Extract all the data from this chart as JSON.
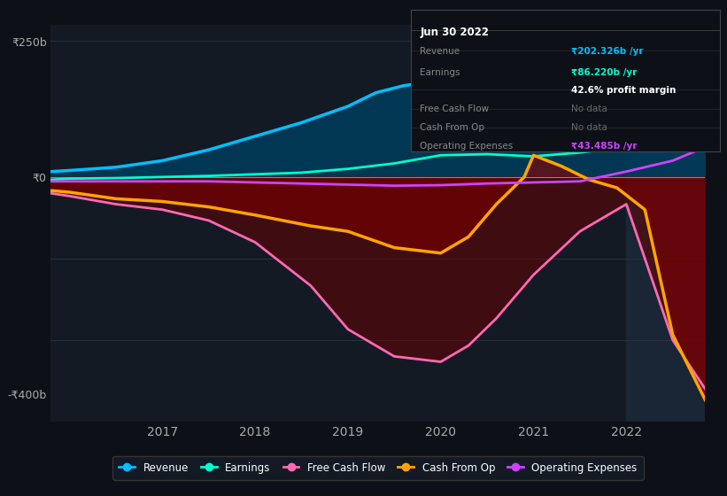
{
  "bg_color": "#0d1117",
  "plot_bg_color": "#131a24",
  "y_label_250": "₹250b",
  "y_label_0": "₹0",
  "y_label_neg400": "-₹400b",
  "ylim": [
    -450,
    280
  ],
  "xlim_start": 2015.8,
  "xlim_end": 2022.85,
  "x_ticks": [
    2017,
    2018,
    2019,
    2020,
    2021,
    2022
  ],
  "highlight_x_start": 2022.0,
  "highlight_x_end": 2022.85,
  "revenue": {
    "x": [
      2015.8,
      2016,
      2016.5,
      2017,
      2017.5,
      2018,
      2018.5,
      2019,
      2019.3,
      2019.6,
      2019.9,
      2020.2,
      2020.5,
      2020.8,
      2021.0,
      2021.3,
      2021.6,
      2021.9,
      2022.2,
      2022.5,
      2022.85
    ],
    "y": [
      10,
      12,
      18,
      30,
      50,
      75,
      100,
      130,
      155,
      168,
      175,
      185,
      190,
      185,
      175,
      165,
      175,
      185,
      210,
      235,
      255
    ],
    "color": "#00bfff",
    "linewidth": 2.5,
    "fill_color": "#003d5c",
    "fill_alpha": 0.85,
    "label": "Revenue"
  },
  "earnings": {
    "x": [
      2015.8,
      2016,
      2016.5,
      2017,
      2017.5,
      2018,
      2018.5,
      2019,
      2019.5,
      2020,
      2020.5,
      2021,
      2021.5,
      2022,
      2022.5,
      2022.85
    ],
    "y": [
      -5,
      -3,
      -2,
      0,
      2,
      5,
      8,
      15,
      25,
      40,
      42,
      38,
      45,
      55,
      70,
      80
    ],
    "color": "#00ffcc",
    "linewidth": 2.0,
    "label": "Earnings"
  },
  "free_cash_flow": {
    "x": [
      2015.8,
      2016,
      2016.5,
      2017,
      2017.5,
      2018,
      2018.3,
      2018.6,
      2019,
      2019.5,
      2020,
      2020.3,
      2020.6,
      2021,
      2021.5,
      2022,
      2022.5,
      2022.85
    ],
    "y": [
      -30,
      -35,
      -50,
      -60,
      -80,
      -120,
      -160,
      -200,
      -280,
      -330,
      -340,
      -310,
      -260,
      -180,
      -100,
      -50,
      -300,
      -390
    ],
    "color": "#ff69b4",
    "linewidth": 2.0,
    "label": "Free Cash Flow"
  },
  "cash_from_op": {
    "x": [
      2015.8,
      2016,
      2016.5,
      2017,
      2017.5,
      2018,
      2018.3,
      2018.6,
      2019,
      2019.5,
      2020,
      2020.3,
      2020.6,
      2020.9,
      2021.0,
      2021.3,
      2021.6,
      2021.9,
      2022.2,
      2022.5,
      2022.85
    ],
    "y": [
      -25,
      -28,
      -40,
      -45,
      -55,
      -70,
      -80,
      -90,
      -100,
      -130,
      -140,
      -110,
      -50,
      0,
      40,
      20,
      -5,
      -20,
      -60,
      -290,
      -410
    ],
    "color": "#ffa500",
    "linewidth": 2.5,
    "fill_color": "#8b0000",
    "fill_alpha": 0.6,
    "label": "Cash From Op"
  },
  "operating_expenses": {
    "x": [
      2015.8,
      2016,
      2017,
      2017.5,
      2018,
      2018.5,
      2019,
      2019.5,
      2020,
      2020.5,
      2021,
      2021.5,
      2022,
      2022.5,
      2022.85
    ],
    "y": [
      -8,
      -8,
      -8,
      -8,
      -10,
      -12,
      -14,
      -16,
      -15,
      -12,
      -10,
      -8,
      10,
      30,
      55
    ],
    "color": "#cc44ff",
    "linewidth": 2.0,
    "label": "Operating Expenses"
  },
  "tooltip": {
    "date": "Jun 30 2022",
    "revenue_label": "Revenue",
    "revenue_val": "₹202.326b /yr",
    "revenue_color": "#00bfff",
    "earnings_label": "Earnings",
    "earnings_val": "₹86.220b /yr",
    "earnings_color": "#00ffcc",
    "profit_margin": "42.6% profit margin",
    "fcf_label": "Free Cash Flow",
    "fcf_val": "No data",
    "cash_from_op_label": "Cash From Op",
    "cash_from_op_val": "No data",
    "op_exp_label": "Operating Expenses",
    "op_exp_val": "₹43.485b /yr",
    "op_exp_color": "#cc44ff"
  },
  "legend_items": [
    {
      "label": "Revenue",
      "color": "#00bfff"
    },
    {
      "label": "Earnings",
      "color": "#00ffcc"
    },
    {
      "label": "Free Cash Flow",
      "color": "#ff69b4"
    },
    {
      "label": "Cash From Op",
      "color": "#ffa500"
    },
    {
      "label": "Operating Expenses",
      "color": "#cc44ff"
    }
  ]
}
